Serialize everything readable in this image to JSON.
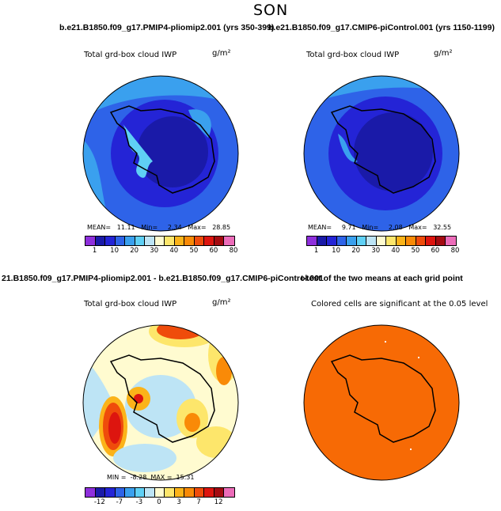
{
  "season": "SON",
  "top_left": {
    "header": "b.e21.B1850.f09_g17.PMIP4-pliomip2.001 (yrs 350-399)",
    "variable": "Total grd-box cloud IWP",
    "units": "g/m²",
    "stats": "MEAN=   11.11   Min=     2.34   Max=   28.85",
    "colorbar_labels": [
      "1",
      "10",
      "20",
      "30",
      "40",
      "50",
      "60",
      "80"
    ]
  },
  "top_right": {
    "header": "b.e21.B1850.f09_g17.CMIP6-piControl.001 (yrs 1150-1199)",
    "variable": "Total grd-box cloud IWP",
    "units": "g/m²",
    "stats": "MEAN=     9.71   Min=     2.08   Max=   32.55",
    "colorbar_labels": [
      "1",
      "10",
      "20",
      "30",
      "40",
      "50",
      "60",
      "80"
    ]
  },
  "bottom_left": {
    "header": "21.B1850.f09_g17.PMIP4-pliomip2.001 - b.e21.B1850.f09_g17.CMIP6-piControl.001",
    "variable": "Total grd-box cloud IWP",
    "units": "g/m²",
    "stats": "MIN =  -8.28  MAX =  15.31",
    "colorbar_labels": [
      "-12",
      "-7",
      "-3",
      "0",
      "3",
      "7",
      "12"
    ]
  },
  "bottom_right": {
    "header": "t-test of the two means at each grid point",
    "subtitle": "Colored cells are significant at the 0.05 level"
  },
  "colors": {
    "abs_scale": [
      "#8e2fdc",
      "#1a1aa8",
      "#2424d6",
      "#2e63e8",
      "#3aa0ee",
      "#5fd0f5",
      "#bde4f5",
      "#fffbd0",
      "#fde66b",
      "#fbb319",
      "#f98a07",
      "#ef4c0b",
      "#dd150f",
      "#a40b11",
      "#ec6cb9"
    ],
    "diff_scale": [
      "#8e2fdc",
      "#1a1aa8",
      "#2424d6",
      "#2e63e8",
      "#3aa0ee",
      "#5fd0f5",
      "#bde4f5",
      "#fffbd0",
      "#fde66b",
      "#fbb319",
      "#f98a07",
      "#ef4c0b",
      "#dd150f",
      "#a40b11",
      "#ec6cb9"
    ],
    "significance": "#f76a05"
  }
}
